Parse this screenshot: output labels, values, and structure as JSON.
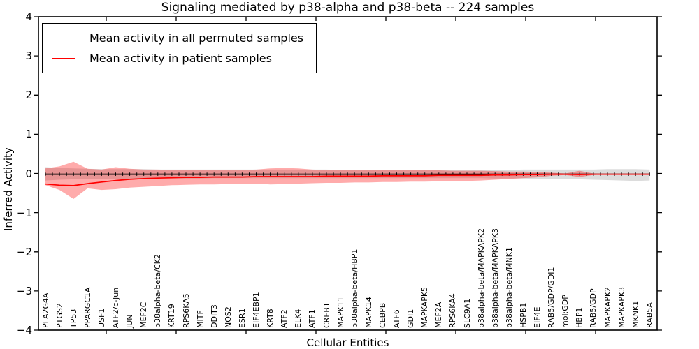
{
  "chart_data": {
    "type": "line",
    "title": "Signaling mediated by p38-alpha and p38-beta -- 224 samples",
    "xlabel": "Cellular Entities",
    "ylabel": "Inferred Activity",
    "ylim": [
      -4,
      4
    ],
    "yticks": [
      4,
      3,
      2,
      1,
      0,
      -1,
      -2,
      -3,
      -4
    ],
    "ytick_labels": [
      "4",
      "3",
      "2",
      "1",
      "0",
      "−1",
      "−2",
      "−3",
      "−4"
    ],
    "grid": false,
    "legend_position": "upper left",
    "categories": [
      "PLA2G4A",
      "PTGS2",
      "TP53",
      "PPARGC1A",
      "USF1",
      "ATF2/c-Jun",
      "JUN",
      "MEF2C",
      "p38alpha-beta/CK2",
      "KRT19",
      "RPS6KA5",
      "MITF",
      "DDIT3",
      "NOS2",
      "ESR1",
      "EIF4EBP1",
      "KRT8",
      "ATF2",
      "ELK4",
      "ATF1",
      "CREB1",
      "MAPK11",
      "p38alpha-beta/HBP1",
      "MAPK14",
      "CEBPB",
      "ATF6",
      "GDI1",
      "MAPKAPK5",
      "MEF2A",
      "RPS6KA4",
      "SLC9A1",
      "p38alpha-beta/MAPKAPK2",
      "p38alpha-beta/MAPKAPK3",
      "p38alpha-beta/MNK1",
      "HSPB1",
      "EIF4E",
      "RAB5/GDP/GDI1",
      "mol:GDP",
      "HBP1",
      "RAB5/GDP",
      "MAPKAPK2",
      "MAPKAPK3",
      "MKNK1",
      "RAB5A"
    ],
    "series": [
      {
        "name": "Mean activity in all permuted samples",
        "color": "#000000",
        "band_color": "rgba(128,128,128,0.28)",
        "values": [
          -0.02,
          -0.02,
          -0.02,
          -0.02,
          -0.02,
          -0.02,
          -0.02,
          -0.02,
          -0.02,
          -0.02,
          -0.02,
          -0.02,
          -0.02,
          -0.02,
          -0.02,
          -0.02,
          -0.02,
          -0.02,
          -0.02,
          -0.02,
          -0.02,
          -0.02,
          -0.02,
          -0.02,
          -0.02,
          -0.02,
          -0.02,
          -0.02,
          -0.02,
          -0.02,
          -0.02,
          -0.02,
          -0.02,
          -0.02,
          -0.02,
          -0.02,
          -0.02,
          -0.02,
          -0.02,
          -0.02,
          -0.02,
          -0.02,
          -0.02,
          -0.02
        ],
        "band_upper": [
          0.16,
          0.14,
          0.13,
          0.12,
          0.11,
          0.11,
          0.11,
          0.11,
          0.1,
          0.1,
          0.1,
          0.1,
          0.1,
          0.1,
          0.1,
          0.1,
          0.1,
          0.1,
          0.1,
          0.1,
          0.1,
          0.09,
          0.09,
          0.09,
          0.09,
          0.09,
          0.09,
          0.09,
          0.09,
          0.09,
          0.09,
          0.09,
          0.09,
          0.09,
          0.1,
          0.1,
          0.1,
          0.1,
          0.1,
          0.1,
          0.11,
          0.11,
          0.11,
          0.1
        ],
        "band_lower": [
          -0.18,
          -0.16,
          -0.15,
          -0.15,
          -0.14,
          -0.14,
          -0.14,
          -0.13,
          -0.13,
          -0.13,
          -0.13,
          -0.13,
          -0.12,
          -0.12,
          -0.12,
          -0.12,
          -0.12,
          -0.12,
          -0.12,
          -0.12,
          -0.12,
          -0.12,
          -0.12,
          -0.12,
          -0.12,
          -0.12,
          -0.12,
          -0.12,
          -0.12,
          -0.12,
          -0.12,
          -0.12,
          -0.13,
          -0.13,
          -0.13,
          -0.14,
          -0.14,
          -0.15,
          -0.15,
          -0.16,
          -0.17,
          -0.18,
          -0.19,
          -0.18
        ]
      },
      {
        "name": "Mean activity in patient samples",
        "color": "#ff0000",
        "band_color": "rgba(255,0,0,0.33)",
        "values": [
          -0.27,
          -0.3,
          -0.31,
          -0.26,
          -0.22,
          -0.18,
          -0.15,
          -0.13,
          -0.12,
          -0.11,
          -0.1,
          -0.1,
          -0.09,
          -0.09,
          -0.09,
          -0.08,
          -0.08,
          -0.08,
          -0.08,
          -0.08,
          -0.07,
          -0.07,
          -0.07,
          -0.07,
          -0.06,
          -0.06,
          -0.06,
          -0.06,
          -0.05,
          -0.05,
          -0.05,
          -0.05,
          -0.04,
          -0.04,
          -0.03,
          -0.03,
          -0.02,
          -0.02,
          -0.03,
          -0.02,
          -0.02,
          -0.02,
          -0.02,
          -0.02
        ],
        "band_upper": [
          0.13,
          0.18,
          0.3,
          0.12,
          0.1,
          0.16,
          0.12,
          0.1,
          0.1,
          0.09,
          0.09,
          0.09,
          0.09,
          0.09,
          0.09,
          0.1,
          0.13,
          0.14,
          0.13,
          0.1,
          0.09,
          0.08,
          0.08,
          0.08,
          0.08,
          0.08,
          0.08,
          0.08,
          0.08,
          0.07,
          0.07,
          0.07,
          0.06,
          0.05,
          0.05,
          0.04,
          0.02,
          0.0,
          0.07,
          0.0,
          -0.02,
          -0.02,
          -0.02,
          -0.02
        ],
        "band_lower": [
          -0.3,
          -0.42,
          -0.65,
          -0.38,
          -0.42,
          -0.4,
          -0.36,
          -0.34,
          -0.32,
          -0.3,
          -0.29,
          -0.28,
          -0.28,
          -0.27,
          -0.27,
          -0.26,
          -0.28,
          -0.27,
          -0.26,
          -0.25,
          -0.24,
          -0.24,
          -0.23,
          -0.23,
          -0.22,
          -0.22,
          -0.21,
          -0.21,
          -0.2,
          -0.2,
          -0.19,
          -0.18,
          -0.16,
          -0.14,
          -0.12,
          -0.1,
          -0.06,
          -0.04,
          -0.09,
          -0.04,
          -0.02,
          -0.02,
          -0.02,
          -0.02
        ]
      }
    ]
  }
}
